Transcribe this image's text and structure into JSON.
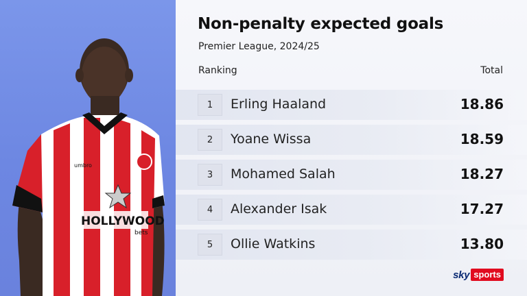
{
  "header": {
    "title": "Non-penalty expected goals",
    "subtitle": "Premier League, 2024/25"
  },
  "columns": {
    "ranking": "Ranking",
    "total": "Total"
  },
  "rows": [
    {
      "rank": "1",
      "name": "Erling Haaland",
      "value": "18.86"
    },
    {
      "rank": "2",
      "name": "Yoane Wissa",
      "value": "18.59"
    },
    {
      "rank": "3",
      "name": "Mohamed Salah",
      "value": "18.27"
    },
    {
      "rank": "4",
      "name": "Alexander Isak",
      "value": "17.27"
    },
    {
      "rank": "5",
      "name": "Ollie Watkins",
      "value": "13.80"
    }
  ],
  "photo": {
    "shirt_sponsor": "HOLLYWOOD",
    "shirt_sponsor_sub": "bets",
    "kit_brand": "umbro"
  },
  "branding": {
    "logo_sky": "sky",
    "logo_sports": "sports",
    "accent_color": "#e10b1f",
    "panel_color": "#7b96ea"
  }
}
